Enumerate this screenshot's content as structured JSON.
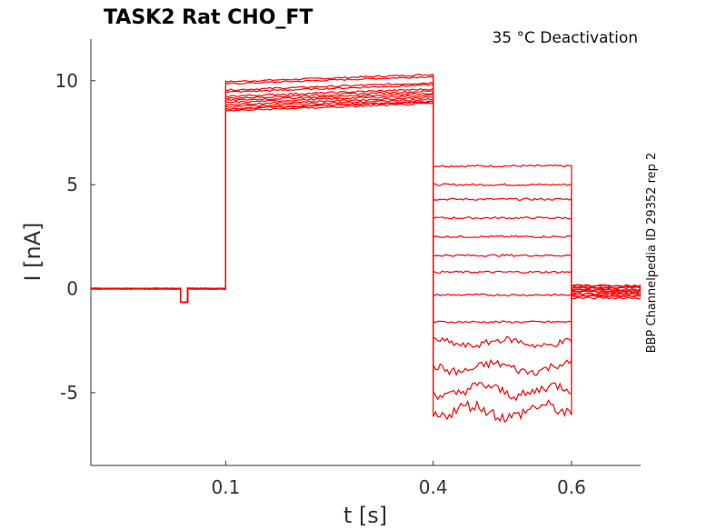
{
  "chart_data": {
    "type": "line",
    "title": "TASK2  Rat  CHO_FT",
    "annotation": "35 °C  Deactivation",
    "side_label": "BBP Channelpedia ID 29352 rep 2",
    "xlabel": "t [s]",
    "ylabel": "I [nA]",
    "xlim": [
      -0.095,
      0.7
    ],
    "ylim": [
      -8.5,
      12
    ],
    "xticks": [
      0.1,
      0.4,
      0.6
    ],
    "xtick_labels": [
      "0.1",
      "0.4",
      "0.6"
    ],
    "yticks": [
      10,
      5,
      0,
      -5
    ],
    "ytick_labels": [
      "10",
      "5",
      "0",
      "-5"
    ],
    "grid": false,
    "line_color": "#ff0000",
    "protocol": {
      "baseline_end": 0.1,
      "step_end": 0.4,
      "tail_end": 0.6,
      "test_pulse": [
        0.035,
        0.045,
        -0.65
      ]
    },
    "activation_levels": [
      10.1,
      10.0,
      9.7,
      9.6,
      9.4,
      9.3,
      9.2,
      9.1,
      9.0,
      8.9,
      8.8,
      8.8,
      8.7
    ],
    "tail_levels": [
      5.9,
      5.0,
      4.3,
      3.4,
      2.5,
      1.6,
      0.8,
      -0.3,
      -1.6,
      -2.6,
      -3.8,
      -4.9,
      -5.9
    ],
    "post_levels": [
      0.15,
      0.05,
      -0.05,
      -0.15,
      -0.25,
      -0.35,
      -0.45
    ]
  }
}
